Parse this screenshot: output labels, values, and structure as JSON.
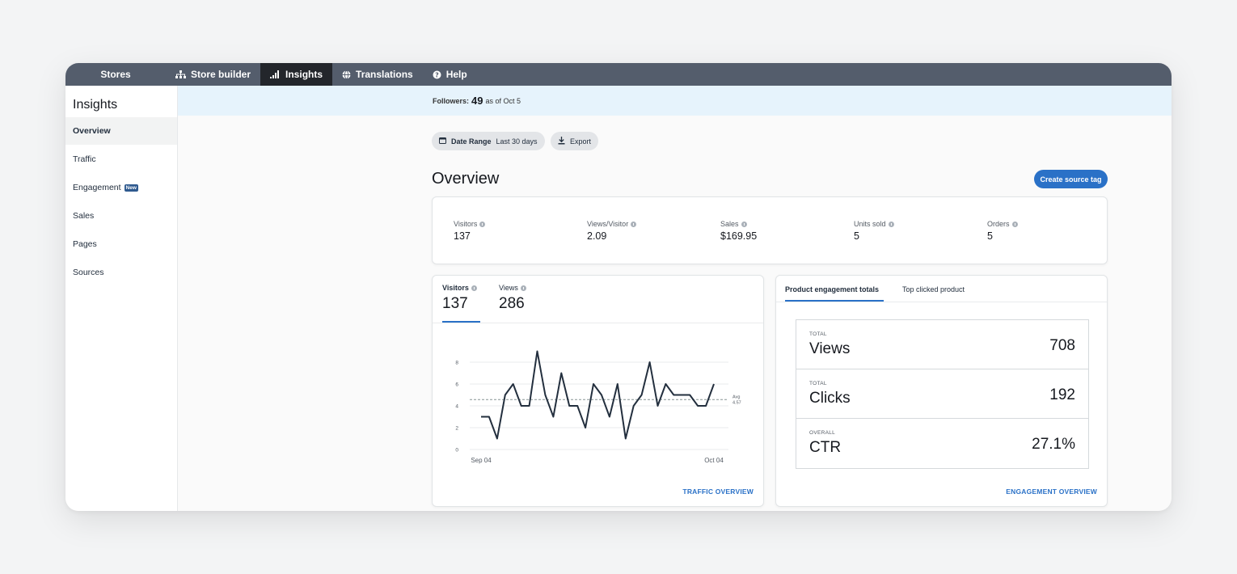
{
  "nav": {
    "items": [
      {
        "label": "Stores",
        "icon": ""
      },
      {
        "label": "Store builder",
        "icon": "sitemap-icon"
      },
      {
        "label": "Insights",
        "icon": "bar-signal-icon"
      },
      {
        "label": "Translations",
        "icon": "globe-icon"
      },
      {
        "label": "Help",
        "icon": "help-circle-icon"
      }
    ],
    "active": "Insights"
  },
  "sidebar": {
    "title": "Insights",
    "items": [
      {
        "label": "Overview",
        "active": true
      },
      {
        "label": "Traffic"
      },
      {
        "label": "Engagement",
        "badge": "New"
      },
      {
        "label": "Sales"
      },
      {
        "label": "Pages"
      },
      {
        "label": "Sources"
      }
    ]
  },
  "followers": {
    "label": "Followers:",
    "count": "49",
    "suffix": "as of Oct 5"
  },
  "toolbar": {
    "date_range_label": "Date Range",
    "date_range_value": "Last 30 days",
    "export_label": "Export"
  },
  "overview": {
    "title": "Overview",
    "create_button": "Create source tag",
    "metrics": [
      {
        "label": "Visitors",
        "value": "137"
      },
      {
        "label": "Views/Visitor",
        "value": "2.09"
      },
      {
        "label": "Sales",
        "value": "$169.95"
      },
      {
        "label": "Units sold",
        "value": "5"
      },
      {
        "label": "Orders",
        "value": "5"
      }
    ]
  },
  "traffic": {
    "tabs": [
      {
        "label": "Visitors",
        "value": "137"
      },
      {
        "label": "Views",
        "value": "286"
      }
    ],
    "link": "TRAFFIC OVERVIEW"
  },
  "chart_data": {
    "type": "line",
    "x_tick_labels": [
      "Sep 04",
      "Oct 04"
    ],
    "y_ticks": [
      0,
      2,
      4,
      6,
      8
    ],
    "ylim": [
      0,
      8
    ],
    "grid": true,
    "series": [
      {
        "values": [
          3,
          3,
          1,
          5,
          6,
          4,
          4,
          9,
          5,
          3,
          7,
          4,
          4,
          2,
          6,
          5,
          3,
          6,
          1,
          4,
          5,
          8,
          4,
          6,
          5,
          5,
          5,
          4,
          4,
          6
        ]
      }
    ],
    "avg": {
      "label": "Avg",
      "value": "4.57"
    },
    "colors": {
      "line": "#232f3e",
      "avg": "#879596",
      "grid": "#e9ebed"
    }
  },
  "engagement": {
    "tabs": [
      "Product engagement totals",
      "Top clicked product"
    ],
    "stats": [
      {
        "caption": "TOTAL",
        "name": "Views",
        "value": "708"
      },
      {
        "caption": "TOTAL",
        "name": "Clicks",
        "value": "192"
      },
      {
        "caption": "OVERALL",
        "name": "CTR",
        "value": "27.1%"
      }
    ],
    "link": "ENGAGEMENT OVERVIEW"
  },
  "colors": {
    "accent": "#2a71c7",
    "nav_bg": "#545d6c",
    "nav_active": "#23262b",
    "banner": "#e6f3fc"
  }
}
